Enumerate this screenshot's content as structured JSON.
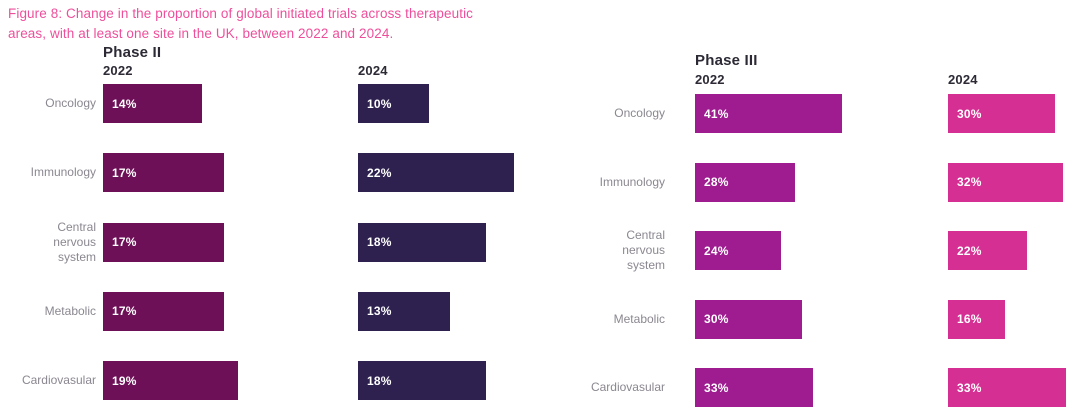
{
  "figure": {
    "title_line1": "Figure 8: Change in the proportion of global initiated trials across therapeutic",
    "title_line2": "areas, with at least one site in the UK, between 2022 and 2024.",
    "title_color": "#ee4f9b"
  },
  "colors": {
    "phase2_2022_bar": "#6d1057",
    "phase2_2024_bar": "#2e2150",
    "phase3_2022_bar": "#9e1c90",
    "phase3_2024_bar": "#d62f93",
    "category_label_gray": "#8b8790",
    "header_dark": "#2d2a35",
    "value_label_white": "#ffffff",
    "background": "#ffffff"
  },
  "chart_data": [
    {
      "type": "bar",
      "orientation": "horizontal",
      "title": "Phase II",
      "unit": "%",
      "value_axis": "hidden",
      "grid": false,
      "data_label_position": "inside-start",
      "legend": "column-headers",
      "categories": [
        "Oncology",
        "Immunology",
        "Central\nnervous\nsystem",
        "Metabolic",
        "Cardiovasular"
      ],
      "series": [
        {
          "name": "2022",
          "color": "#6d1057",
          "values": [
            14,
            17,
            17,
            17,
            19
          ],
          "labels": [
            "14%",
            "17%",
            "17%",
            "17%",
            "19%"
          ]
        },
        {
          "name": "2024",
          "color": "#2e2150",
          "values": [
            10,
            22,
            18,
            13,
            18
          ],
          "labels": [
            "10%",
            "22%",
            "18%",
            "13%",
            "18%"
          ]
        }
      ]
    },
    {
      "type": "bar",
      "orientation": "horizontal",
      "title": "Phase III",
      "unit": "%",
      "value_axis": "hidden",
      "grid": false,
      "data_label_position": "inside-start",
      "legend": "column-headers",
      "categories": [
        "Oncology",
        "Immunology",
        "Central\nnervous\nsystem",
        "Metabolic",
        "Cardiovasular"
      ],
      "series": [
        {
          "name": "2022",
          "color": "#9e1c90",
          "values": [
            41,
            28,
            24,
            30,
            33
          ],
          "labels": [
            "41%",
            "28%",
            "24%",
            "30%",
            "33%"
          ]
        },
        {
          "name": "2024",
          "color": "#d62f93",
          "values": [
            30,
            32,
            22,
            16,
            33
          ],
          "labels": [
            "30%",
            "32%",
            "22%",
            "16%",
            "33%"
          ]
        }
      ]
    }
  ]
}
